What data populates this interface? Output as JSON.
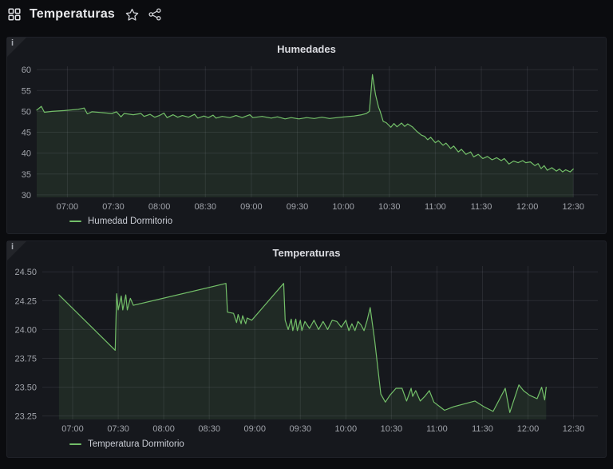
{
  "header": {
    "title": "Temperaturas",
    "icons": {
      "nav_grid": "dashboard-grid",
      "favorite": "star-outline",
      "share": "share-alt"
    }
  },
  "panel_info_badge": "i",
  "panels": [
    {
      "title": "Humedades",
      "legend_label": "Humedad Dormitorio"
    },
    {
      "title": "Temperaturas",
      "legend_label": "Temperatura Dormitorio"
    }
  ],
  "colors": {
    "series_green": "#73bf69",
    "series_fill": "rgba(115,191,105,0.11)",
    "grid": "rgba(204,204,220,0.11)",
    "tick_text": "#a1a4ab"
  },
  "chart_data": [
    {
      "type": "area",
      "title": "Humedades",
      "x_unit": "time (minutes of day)",
      "xlim": [
        400,
        766
      ],
      "ylim": [
        29.4,
        60.8
      ],
      "grid": true,
      "legend_position": "bottom-left",
      "x_ticks": [
        {
          "v": 420,
          "label": "07:00"
        },
        {
          "v": 450,
          "label": "07:30"
        },
        {
          "v": 480,
          "label": "08:00"
        },
        {
          "v": 510,
          "label": "08:30"
        },
        {
          "v": 540,
          "label": "09:00"
        },
        {
          "v": 570,
          "label": "09:30"
        },
        {
          "v": 600,
          "label": "10:00"
        },
        {
          "v": 630,
          "label": "10:30"
        },
        {
          "v": 660,
          "label": "11:00"
        },
        {
          "v": 690,
          "label": "11:30"
        },
        {
          "v": 720,
          "label": "12:00"
        },
        {
          "v": 750,
          "label": "12:30"
        }
      ],
      "y_ticks": [
        {
          "v": 30,
          "label": "30"
        },
        {
          "v": 35,
          "label": "35"
        },
        {
          "v": 40,
          "label": "40"
        },
        {
          "v": 45,
          "label": "45"
        },
        {
          "v": 50,
          "label": "50"
        },
        {
          "v": 55,
          "label": "55"
        },
        {
          "v": 60,
          "label": "60"
        }
      ],
      "series": [
        {
          "name": "Humedad Dormitorio",
          "points": [
            [
              400,
              50.3
            ],
            [
              403,
              51.2
            ],
            [
              405,
              49.8
            ],
            [
              410,
              50.0
            ],
            [
              418,
              50.2
            ],
            [
              427,
              50.5
            ],
            [
              431,
              50.8
            ],
            [
              433,
              49.4
            ],
            [
              436,
              49.9
            ],
            [
              443,
              49.7
            ],
            [
              449,
              49.5
            ],
            [
              452,
              49.9
            ],
            [
              455,
              48.7
            ],
            [
              457,
              49.5
            ],
            [
              463,
              49.2
            ],
            [
              468,
              49.5
            ],
            [
              470,
              48.8
            ],
            [
              474,
              49.3
            ],
            [
              477,
              48.6
            ],
            [
              480,
              49.0
            ],
            [
              483,
              49.6
            ],
            [
              485,
              48.5
            ],
            [
              489,
              49.2
            ],
            [
              492,
              48.6
            ],
            [
              495,
              49.0
            ],
            [
              499,
              48.6
            ],
            [
              503,
              49.3
            ],
            [
              505,
              48.4
            ],
            [
              509,
              48.9
            ],
            [
              512,
              48.5
            ],
            [
              515,
              49.1
            ],
            [
              517,
              48.4
            ],
            [
              521,
              48.8
            ],
            [
              526,
              48.5
            ],
            [
              530,
              49.0
            ],
            [
              534,
              48.5
            ],
            [
              539,
              49.2
            ],
            [
              541,
              48.5
            ],
            [
              547,
              48.8
            ],
            [
              553,
              48.4
            ],
            [
              557,
              48.7
            ],
            [
              562,
              48.2
            ],
            [
              566,
              48.5
            ],
            [
              571,
              48.2
            ],
            [
              576,
              48.5
            ],
            [
              581,
              48.3
            ],
            [
              586,
              48.6
            ],
            [
              591,
              48.3
            ],
            [
              596,
              48.5
            ],
            [
              601,
              48.7
            ],
            [
              607,
              48.9
            ],
            [
              612,
              49.2
            ],
            [
              615,
              49.5
            ],
            [
              617,
              50.0
            ],
            [
              619,
              58.8
            ],
            [
              621,
              54.0
            ],
            [
              623,
              51.0
            ],
            [
              624,
              50.0
            ],
            [
              626,
              47.6
            ],
            [
              628,
              47.3
            ],
            [
              631,
              46.2
            ],
            [
              633,
              47.1
            ],
            [
              635,
              46.3
            ],
            [
              638,
              47.2
            ],
            [
              640,
              46.4
            ],
            [
              642,
              47.0
            ],
            [
              645,
              46.3
            ],
            [
              648,
              45.2
            ],
            [
              651,
              44.3
            ],
            [
              653,
              44.0
            ],
            [
              655,
              43.2
            ],
            [
              657,
              43.8
            ],
            [
              660,
              42.5
            ],
            [
              662,
              43.0
            ],
            [
              665,
              41.9
            ],
            [
              667,
              42.4
            ],
            [
              670,
              41.1
            ],
            [
              672,
              41.7
            ],
            [
              675,
              40.3
            ],
            [
              677,
              40.9
            ],
            [
              680,
              39.7
            ],
            [
              683,
              40.3
            ],
            [
              685,
              39.1
            ],
            [
              688,
              39.7
            ],
            [
              691,
              38.7
            ],
            [
              694,
              39.2
            ],
            [
              697,
              38.4
            ],
            [
              700,
              38.9
            ],
            [
              703,
              38.2
            ],
            [
              705,
              38.7
            ],
            [
              708,
              37.4
            ],
            [
              711,
              38.1
            ],
            [
              714,
              37.7
            ],
            [
              717,
              38.2
            ],
            [
              719,
              37.7
            ],
            [
              722,
              37.9
            ],
            [
              725,
              37.0
            ],
            [
              727,
              37.5
            ],
            [
              729,
              36.3
            ],
            [
              731,
              37.0
            ],
            [
              733,
              35.9
            ],
            [
              736,
              36.5
            ],
            [
              739,
              35.7
            ],
            [
              741,
              36.2
            ],
            [
              743,
              35.5
            ],
            [
              745,
              36.0
            ],
            [
              748,
              35.5
            ],
            [
              750,
              36.2
            ]
          ]
        }
      ]
    },
    {
      "type": "area",
      "title": "Temperaturas",
      "x_unit": "time (minutes of day)",
      "xlim": [
        400,
        766
      ],
      "ylim": [
        23.22,
        24.55
      ],
      "grid": true,
      "legend_position": "bottom-left",
      "x_ticks": [
        {
          "v": 420,
          "label": "07:00"
        },
        {
          "v": 450,
          "label": "07:30"
        },
        {
          "v": 480,
          "label": "08:00"
        },
        {
          "v": 510,
          "label": "08:30"
        },
        {
          "v": 540,
          "label": "09:00"
        },
        {
          "v": 570,
          "label": "09:30"
        },
        {
          "v": 600,
          "label": "10:00"
        },
        {
          "v": 630,
          "label": "10:30"
        },
        {
          "v": 660,
          "label": "11:00"
        },
        {
          "v": 690,
          "label": "11:30"
        },
        {
          "v": 720,
          "label": "12:00"
        },
        {
          "v": 750,
          "label": "12:30"
        }
      ],
      "y_ticks": [
        {
          "v": 23.25,
          "label": "23.25"
        },
        {
          "v": 23.5,
          "label": "23.50"
        },
        {
          "v": 23.75,
          "label": "23.75"
        },
        {
          "v": 24.0,
          "label": "24.00"
        },
        {
          "v": 24.25,
          "label": "24.25"
        },
        {
          "v": 24.5,
          "label": "24.50"
        }
      ],
      "series": [
        {
          "name": "Temperatura Dormitorio",
          "points": [
            [
              411,
              24.3
            ],
            [
              448,
              23.82
            ],
            [
              449,
              24.31
            ],
            [
              450,
              24.17
            ],
            [
              452,
              24.29
            ],
            [
              453,
              24.17
            ],
            [
              455,
              24.3
            ],
            [
              456,
              24.17
            ],
            [
              458,
              24.27
            ],
            [
              460,
              24.21
            ],
            [
              521,
              24.4
            ],
            [
              522,
              24.15
            ],
            [
              526,
              24.14
            ],
            [
              528,
              24.06
            ],
            [
              529,
              24.13
            ],
            [
              531,
              24.05
            ],
            [
              532,
              24.12
            ],
            [
              534,
              24.05
            ],
            [
              535,
              24.1
            ],
            [
              538,
              24.08
            ],
            [
              559,
              24.4
            ],
            [
              560,
              24.08
            ],
            [
              562,
              24.0
            ],
            [
              564,
              24.09
            ],
            [
              565,
              23.99
            ],
            [
              567,
              24.09
            ],
            [
              568,
              23.99
            ],
            [
              570,
              24.08
            ],
            [
              571,
              23.99
            ],
            [
              573,
              24.07
            ],
            [
              576,
              24.01
            ],
            [
              579,
              24.08
            ],
            [
              582,
              24.0
            ],
            [
              585,
              24.07
            ],
            [
              588,
              24.0
            ],
            [
              591,
              24.08
            ],
            [
              594,
              24.07
            ],
            [
              597,
              24.02
            ],
            [
              600,
              24.08
            ],
            [
              602,
              23.99
            ],
            [
              604,
              24.05
            ],
            [
              606,
              23.99
            ],
            [
              608,
              24.07
            ],
            [
              610,
              24.04
            ],
            [
              612,
              23.99
            ],
            [
              614,
              24.08
            ],
            [
              616,
              24.19
            ],
            [
              619,
              23.9
            ],
            [
              623,
              23.44
            ],
            [
              626,
              23.37
            ],
            [
              629,
              23.43
            ],
            [
              633,
              23.49
            ],
            [
              637,
              23.49
            ],
            [
              640,
              23.38
            ],
            [
              643,
              23.49
            ],
            [
              644,
              23.42
            ],
            [
              646,
              23.47
            ],
            [
              649,
              23.38
            ],
            [
              652,
              23.42
            ],
            [
              655,
              23.47
            ],
            [
              658,
              23.37
            ],
            [
              662,
              23.33
            ],
            [
              665,
              23.3
            ],
            [
              671,
              23.33
            ],
            [
              685,
              23.38
            ],
            [
              691,
              23.33
            ],
            [
              697,
              23.29
            ],
            [
              705,
              23.49
            ],
            [
              708,
              23.28
            ],
            [
              714,
              23.52
            ],
            [
              717,
              23.47
            ],
            [
              721,
              23.43
            ],
            [
              726,
              23.4
            ],
            [
              729,
              23.5
            ],
            [
              731,
              23.39
            ],
            [
              732,
              23.5
            ]
          ]
        }
      ]
    }
  ]
}
